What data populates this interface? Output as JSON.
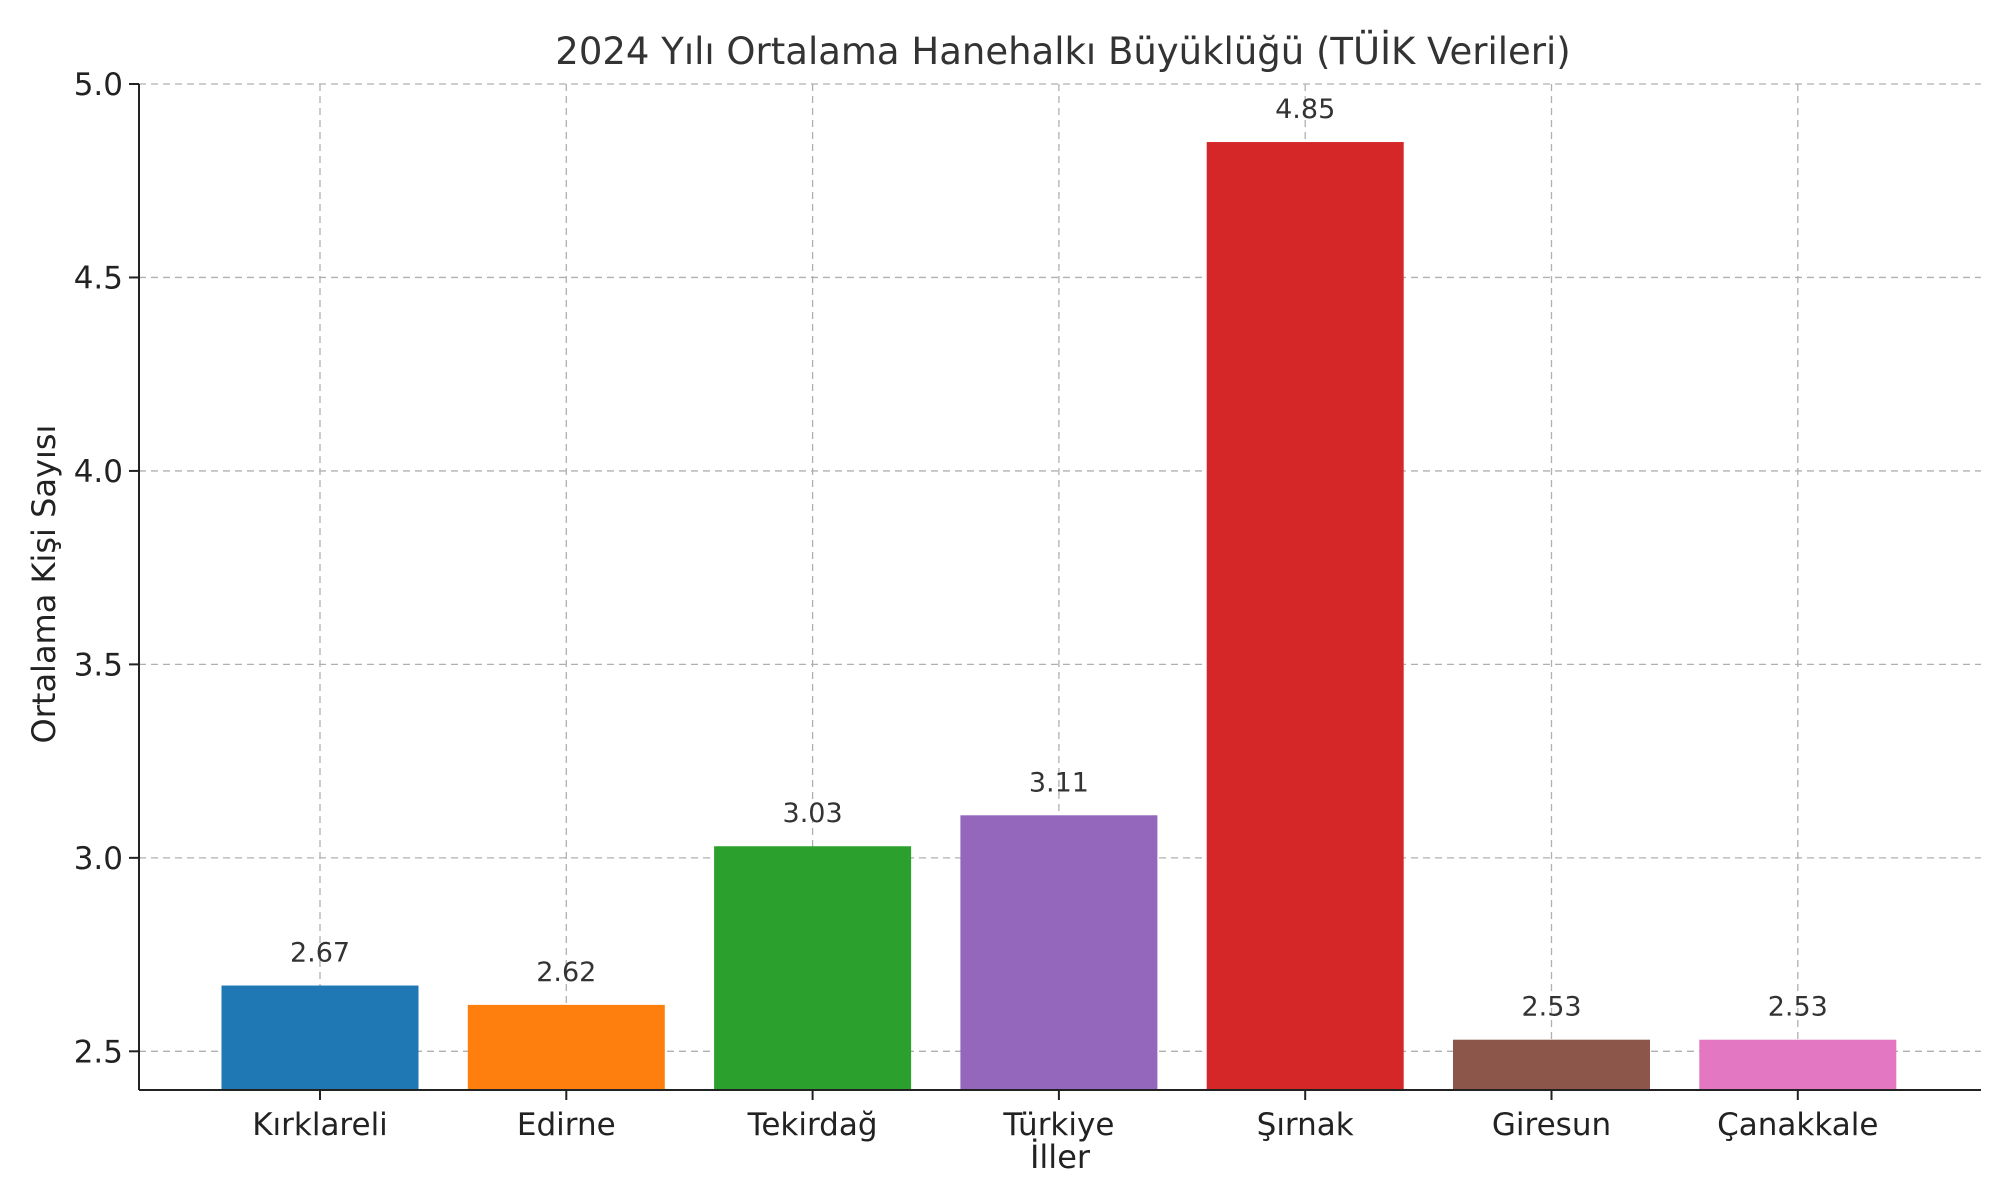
{
  "chart_data": {
    "type": "bar",
    "title": "2024 Yılı Ortalama Hanehalkı Büyüklüğü (TÜİK Verileri)",
    "xlabel": "İller",
    "ylabel": "Ortalama Kişi Sayısı",
    "categories": [
      "Kırklareli",
      "Edirne",
      "Tekirdağ",
      "Türkiye",
      "Şırnak",
      "Giresun",
      "Çanakkale"
    ],
    "values": [
      2.67,
      2.62,
      3.03,
      3.11,
      4.85,
      2.53,
      2.53
    ],
    "value_labels": [
      "2.67",
      "2.62",
      "3.03",
      "3.11",
      "4.85",
      "2.53",
      "2.53"
    ],
    "colors": [
      "#1f77b4",
      "#ff7f0e",
      "#2ca02c",
      "#9467bd",
      "#d62728",
      "#8c564b",
      "#e377c2"
    ],
    "ylim": [
      2.4,
      5.0
    ],
    "yticks": [
      2.5,
      3.0,
      3.5,
      4.0,
      4.5,
      5.0
    ],
    "ytick_labels": [
      "2.5",
      "3.0",
      "3.5",
      "4.0",
      "4.5",
      "5.0"
    ],
    "grid": true,
    "legend": "none"
  }
}
